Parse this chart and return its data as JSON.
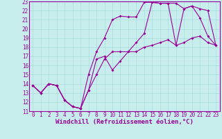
{
  "xlabel": "Windchill (Refroidissement éolien,°C)",
  "background_color": "#c8eded",
  "grid_color": "#a8dcdc",
  "line_color": "#990099",
  "xlim": [
    -0.5,
    23.5
  ],
  "ylim": [
    11,
    23
  ],
  "xticks": [
    0,
    1,
    2,
    3,
    4,
    5,
    6,
    7,
    8,
    9,
    10,
    11,
    12,
    13,
    14,
    15,
    16,
    17,
    18,
    19,
    20,
    21,
    22,
    23
  ],
  "yticks": [
    11,
    12,
    13,
    14,
    15,
    16,
    17,
    18,
    19,
    20,
    21,
    22,
    23
  ],
  "line1_x": [
    0,
    1,
    2,
    3,
    4,
    5,
    6,
    7,
    8,
    9,
    10,
    11,
    12,
    13,
    14,
    15,
    16,
    17,
    18,
    19,
    20,
    21,
    22,
    23
  ],
  "line1_y": [
    13.8,
    13.0,
    14.0,
    13.8,
    12.2,
    11.5,
    11.3,
    13.3,
    15.0,
    16.7,
    17.5,
    17.5,
    17.5,
    17.5,
    18.0,
    18.2,
    18.5,
    18.8,
    18.2,
    18.5,
    19.0,
    19.2,
    18.5,
    18.2
  ],
  "line2_x": [
    0,
    1,
    2,
    3,
    4,
    5,
    6,
    7,
    8,
    9,
    10,
    11,
    12,
    13,
    14,
    15,
    16,
    17,
    18,
    19,
    20,
    21,
    22,
    23
  ],
  "line2_y": [
    13.8,
    13.0,
    14.0,
    13.8,
    12.2,
    11.5,
    11.3,
    15.0,
    17.5,
    19.0,
    21.0,
    21.4,
    21.3,
    21.3,
    22.9,
    22.9,
    22.8,
    22.8,
    18.2,
    22.2,
    22.5,
    21.2,
    19.2,
    18.2
  ],
  "line3_x": [
    0,
    1,
    2,
    3,
    4,
    5,
    6,
    7,
    8,
    9,
    10,
    11,
    12,
    13,
    14,
    15,
    16,
    17,
    18,
    19,
    20,
    21,
    22,
    23
  ],
  "line3_y": [
    13.8,
    13.0,
    14.0,
    13.8,
    12.2,
    11.5,
    11.3,
    13.3,
    16.7,
    17.0,
    15.5,
    16.5,
    17.5,
    18.5,
    19.5,
    22.9,
    22.8,
    22.8,
    22.8,
    22.2,
    22.5,
    22.2,
    22.0,
    18.2
  ],
  "xlabel_fontsize": 6.5,
  "tick_fontsize": 5.5,
  "marker": "D",
  "marker_size": 2.0,
  "linewidth": 0.8
}
